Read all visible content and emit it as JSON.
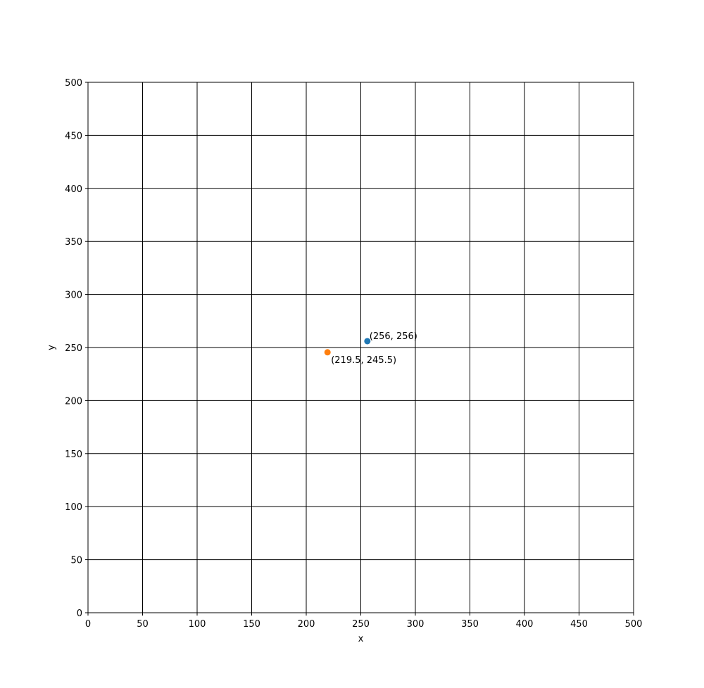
{
  "chart_data": {
    "type": "scatter",
    "title": "",
    "xlabel": "x",
    "ylabel": "y",
    "xlim": [
      0,
      500
    ],
    "ylim": [
      0,
      500
    ],
    "x_ticks": [
      0,
      50,
      100,
      150,
      200,
      250,
      300,
      350,
      400,
      450,
      500
    ],
    "y_ticks": [
      0,
      50,
      100,
      150,
      200,
      250,
      300,
      350,
      400,
      450,
      500
    ],
    "grid": true,
    "points": [
      {
        "x": 256,
        "y": 256,
        "label": "(256, 256)",
        "color": "#1f77b4",
        "label_position": "above-right"
      },
      {
        "x": 219.5,
        "y": 245.5,
        "label": "(219.5, 245.5)",
        "color": "#ff7f0e",
        "label_position": "below-right"
      }
    ]
  }
}
